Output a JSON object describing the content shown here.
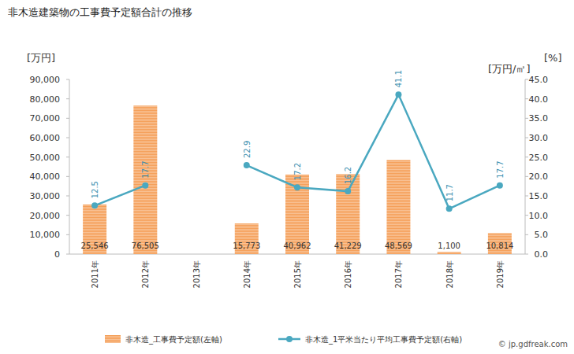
{
  "chart_data": {
    "type": "bar",
    "title": "非木造建築物の工事費予定額合計の推移",
    "y_label": "[万円]",
    "y2_labels": [
      "[万円/㎡]",
      "[%]"
    ],
    "credit": "© jp.gdfreak.com",
    "categories": [
      "2011年",
      "2012年",
      "2013年",
      "2014年",
      "2015年",
      "2016年",
      "2017年",
      "2018年",
      "2019年"
    ],
    "series": [
      {
        "name": "非木造_工事費予定額(左軸)",
        "type": "bar",
        "color": "#f5a05a",
        "values": [
          25546,
          76505,
          null,
          15773,
          40962,
          41229,
          48569,
          1100,
          10814
        ],
        "value_labels": [
          "25,546",
          "76,505",
          null,
          "15,773",
          "40,962",
          "41,229",
          "48,569",
          "1,100",
          "10,814"
        ]
      },
      {
        "name": "非木造_1平米当たり平均工事費予定額(右軸)",
        "type": "line",
        "axis": "y2",
        "color": "#4aa8c0",
        "marker": "circle",
        "values": [
          12.5,
          17.7,
          null,
          22.9,
          17.2,
          16.2,
          41.1,
          11.7,
          17.7
        ]
      }
    ],
    "ylim": [
      0,
      90000
    ],
    "yticks": [
      0,
      {
        "value": 10000,
        "label": "10,000"
      },
      {
        "value": 20000,
        "label": "20,000"
      },
      {
        "value": 30000,
        "label": "30,000"
      },
      {
        "value": 40000,
        "label": "40,000"
      },
      {
        "value": 50000,
        "label": "50,000"
      },
      {
        "value": 60000,
        "label": "60,000"
      },
      {
        "value": 70000,
        "label": "70,000"
      },
      {
        "value": 80000,
        "label": "80,000"
      },
      {
        "value": 90000,
        "label": "90,000"
      }
    ],
    "y2lim": [
      0,
      45
    ],
    "y2ticks": [
      {
        "value": 0,
        "label": "0.0"
      },
      {
        "value": 5,
        "label": "5.0"
      },
      {
        "value": 10,
        "label": "10.0"
      },
      {
        "value": 15,
        "label": "15.0"
      },
      {
        "value": 20,
        "label": "20.0"
      },
      {
        "value": 25,
        "label": "25.0"
      },
      {
        "value": 30,
        "label": "30.0"
      },
      {
        "value": 35,
        "label": "35.0"
      },
      {
        "value": 40,
        "label": "40.0"
      },
      {
        "value": 45,
        "label": "45.0"
      }
    ],
    "grid": false,
    "data_labels": true,
    "legend": "bottom"
  }
}
